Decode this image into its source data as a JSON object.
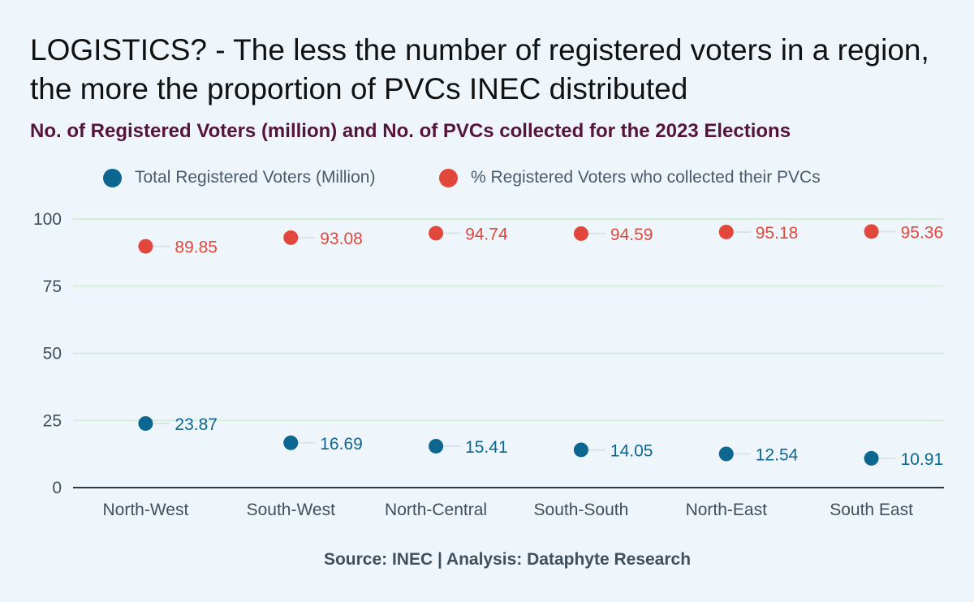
{
  "title": "LOGISTICS? - The less the number of registered voters in a region, the more the proportion of PVCs INEC distributed",
  "subtitle": "No. of Registered Voters (million) and No. of PVCs collected for the 2023 Elections",
  "source": "Source: INEC | Analysis: Dataphyte Research",
  "colors": {
    "voters": "#0b6690",
    "pvcs": "#e1483b",
    "grid": "#d6ecd8",
    "axis": "#2b3a44"
  },
  "chart_data": {
    "type": "scatter",
    "categories": [
      "North-West",
      "South-West",
      "North-Central",
      "South-South",
      "North-East",
      "South East"
    ],
    "series": [
      {
        "name": "Total Registered Voters (Million)",
        "values": [
          23.87,
          16.69,
          15.41,
          14.05,
          12.54,
          10.91
        ]
      },
      {
        "name": "% Registered Voters who collected their PVCs",
        "values": [
          89.85,
          93.08,
          94.74,
          94.59,
          95.18,
          95.36
        ]
      }
    ],
    "ylim": [
      0,
      100
    ],
    "yticks": [
      0,
      25,
      50,
      75,
      100
    ],
    "grid": true,
    "legend": "top-center",
    "xlabel": "",
    "ylabel": ""
  }
}
